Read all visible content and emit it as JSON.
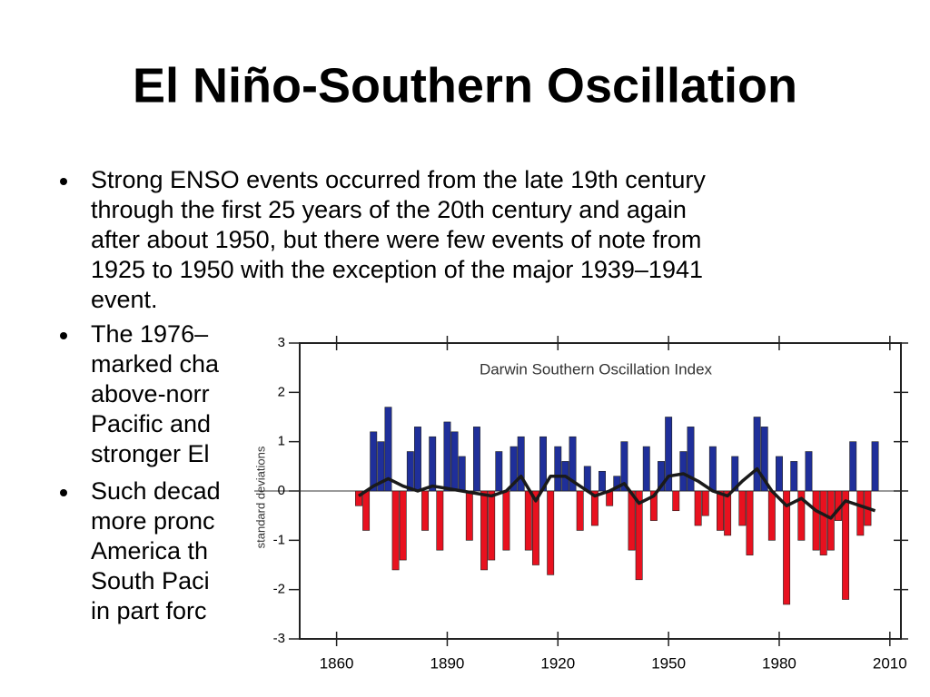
{
  "title": "El Niño-Southern Oscillation",
  "bullets": [
    [
      "Strong ENSO events occurred from the late 19th century",
      "through the first 25 years of the 20th century and again",
      "after about 1950, but there were few events of note from",
      "1925 to 1950 with the exception of the major 1939–1941",
      "event."
    ],
    [
      "The 1976–",
      "marked cha",
      "above-norr",
      "Pacific and",
      "stronger El"
    ],
    [
      "Such decad",
      "more pronc",
      "America th",
      "South Paci",
      "in part forc"
    ]
  ],
  "chart_data": {
    "type": "area",
    "title": "Darwin Southern Oscillation Index",
    "y_label": "standard deviations",
    "xlim": [
      1850,
      2013
    ],
    "xticks": [
      1860,
      1890,
      1920,
      1950,
      1980,
      2010
    ],
    "ylim": [
      -3,
      3
    ],
    "yticks": [
      -3,
      -2,
      -1,
      0,
      1,
      2,
      3
    ],
    "color_positive": "#1f2f9a",
    "color_negative": "#e8111f",
    "line_color": "#1a1a1a",
    "series": [
      {
        "x": [
          1866,
          1868,
          1870,
          1872,
          1874,
          1876,
          1878,
          1880,
          1882,
          1884,
          1886,
          1888,
          1890,
          1892,
          1894,
          1896,
          1898,
          1900,
          1902,
          1904,
          1906,
          1908,
          1910,
          1912,
          1914,
          1916,
          1918,
          1920,
          1922,
          1924,
          1926,
          1928,
          1930,
          1932,
          1934,
          1936,
          1938,
          1940,
          1942,
          1944,
          1946,
          1948,
          1950,
          1952,
          1954,
          1956,
          1958,
          1960,
          1962,
          1964,
          1966,
          1968,
          1970,
          1972,
          1974,
          1976,
          1978,
          1980,
          1982,
          1984,
          1986,
          1988,
          1990,
          1992,
          1994,
          1996,
          1998,
          2000,
          2002,
          2004,
          2006
        ],
        "values": [
          -0.3,
          -0.8,
          1.2,
          1.0,
          1.7,
          -1.6,
          -1.4,
          0.8,
          1.3,
          -0.8,
          1.1,
          -1.2,
          1.4,
          1.2,
          0.7,
          -1.0,
          1.3,
          -1.6,
          -1.4,
          0.8,
          -1.2,
          0.9,
          1.1,
          -1.2,
          -1.5,
          1.1,
          -1.7,
          0.9,
          0.6,
          1.1,
          -0.8,
          0.5,
          -0.7,
          0.4,
          -0.3,
          0.3,
          1.0,
          -1.2,
          -1.8,
          0.9,
          -0.6,
          0.6,
          1.5,
          -0.4,
          0.8,
          1.3,
          -0.7,
          -0.5,
          0.9,
          -0.8,
          -0.9,
          0.7,
          -0.7,
          -1.3,
          1.5,
          1.3,
          -1.0,
          0.7,
          -2.3,
          0.6,
          -1.0,
          0.8,
          -1.2,
          -1.3,
          -1.2,
          -0.6,
          -2.2,
          1.0,
          -0.9,
          -0.7,
          1.0
        ]
      },
      {
        "x": [
          1866,
          1870,
          1874,
          1878,
          1882,
          1886,
          1890,
          1894,
          1898,
          1902,
          1906,
          1910,
          1914,
          1918,
          1922,
          1926,
          1930,
          1934,
          1938,
          1942,
          1946,
          1950,
          1954,
          1958,
          1962,
          1966,
          1970,
          1974,
          1978,
          1982,
          1986,
          1990,
          1994,
          1998,
          2002,
          2006
        ],
        "values": [
          -0.1,
          0.1,
          0.25,
          0.1,
          0.0,
          0.1,
          0.05,
          0.0,
          -0.05,
          -0.1,
          0.0,
          0.3,
          -0.2,
          0.3,
          0.3,
          0.1,
          -0.1,
          0.0,
          0.15,
          -0.25,
          -0.1,
          0.3,
          0.35,
          0.2,
          0.0,
          -0.1,
          0.2,
          0.45,
          0.0,
          -0.3,
          -0.15,
          -0.4,
          -0.55,
          -0.2,
          -0.3,
          -0.4
        ]
      }
    ]
  }
}
